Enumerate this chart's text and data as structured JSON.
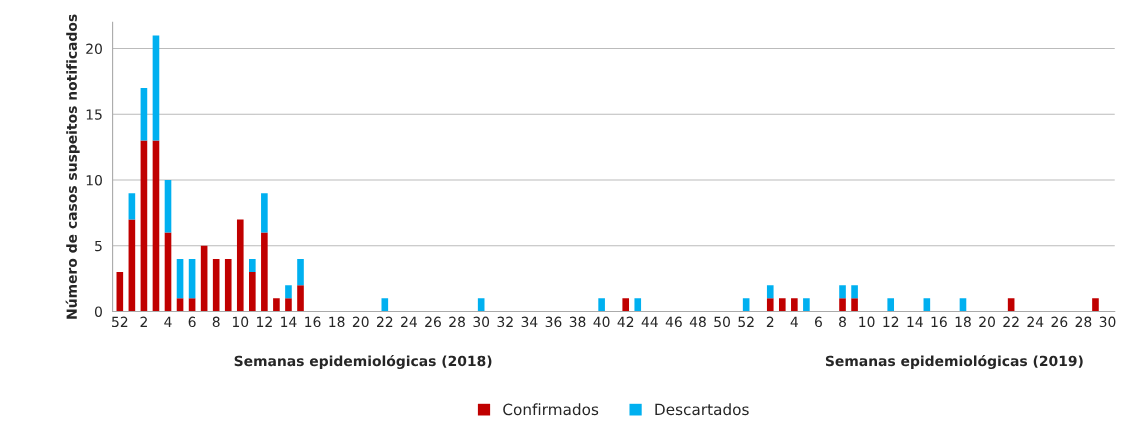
{
  "chart_data": {
    "type": "bar",
    "stacked": true,
    "ylabel": "Número de casos suspeitos notificados",
    "xlabel": "Semanas epidemiológicas (2018)",
    "annotations": [
      "Semanas epidemiológicas (2019)"
    ],
    "categories": [
      "52",
      null,
      "2",
      null,
      "4",
      null,
      "6",
      null,
      "8",
      null,
      "10",
      null,
      "12",
      null,
      "14",
      null,
      "16",
      null,
      "18",
      null,
      "20",
      null,
      "22",
      null,
      "24",
      null,
      "26",
      null,
      "28",
      null,
      "30",
      null,
      "32",
      null,
      "34",
      null,
      "36",
      null,
      "38",
      null,
      "40",
      null,
      "42",
      null,
      "44",
      null,
      "46",
      null,
      "48",
      null,
      "50",
      null,
      "52",
      null,
      "2",
      null,
      "4",
      null,
      "6",
      null,
      "8",
      null,
      "10",
      null,
      "12",
      null,
      "14",
      null,
      "16",
      null,
      "18",
      null,
      "20",
      null,
      "22",
      null,
      "24",
      null,
      "26",
      null,
      "28",
      null,
      "30"
    ],
    "series": [
      {
        "name": "Confirmados",
        "color": "#c00000",
        "values": [
          3,
          7,
          13,
          13,
          6,
          1,
          1,
          5,
          4,
          4,
          7,
          3,
          6,
          1,
          1,
          2,
          0,
          0,
          0,
          0,
          0,
          0,
          0,
          0,
          0,
          0,
          0,
          0,
          0,
          0,
          0,
          0,
          0,
          0,
          0,
          0,
          0,
          0,
          0,
          0,
          0,
          0,
          1,
          0,
          0,
          0,
          0,
          0,
          0,
          0,
          0,
          0,
          0,
          0,
          1,
          1,
          1,
          0,
          0,
          0,
          1,
          1,
          0,
          0,
          0,
          0,
          0,
          0,
          0,
          0,
          0,
          0,
          0,
          0,
          1,
          0,
          0,
          0,
          0,
          0,
          0,
          1,
          0
        ]
      },
      {
        "name": "Descartados",
        "color": "#00b0f0",
        "values": [
          0,
          2,
          4,
          8,
          4,
          3,
          3,
          0,
          0,
          0,
          0,
          1,
          3,
          0,
          1,
          2,
          0,
          0,
          0,
          0,
          0,
          0,
          1,
          0,
          0,
          0,
          0,
          0,
          0,
          0,
          1,
          0,
          0,
          0,
          0,
          0,
          0,
          0,
          0,
          0,
          1,
          0,
          0,
          1,
          0,
          0,
          0,
          0,
          0,
          0,
          0,
          0,
          1,
          0,
          1,
          0,
          0,
          1,
          0,
          0,
          1,
          1,
          0,
          0,
          1,
          0,
          0,
          1,
          0,
          0,
          1,
          0,
          0,
          0,
          0,
          0,
          0,
          0,
          0,
          0,
          0,
          0,
          0
        ]
      }
    ],
    "ylim": [
      0,
      22
    ],
    "yticks": [
      0,
      5,
      10,
      15,
      20
    ],
    "grid": "y",
    "legend": "bottom"
  }
}
